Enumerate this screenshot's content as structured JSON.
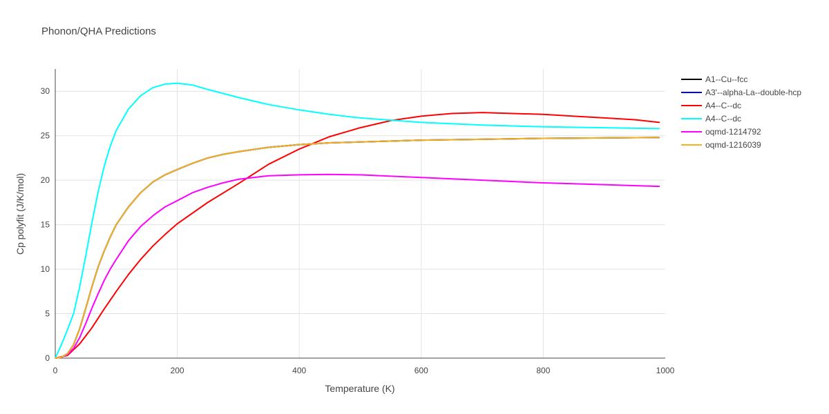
{
  "chart_data": {
    "type": "line",
    "title": "Phonon/QHA Predictions",
    "xlabel": "Temperature (K)",
    "ylabel": "Cp polyfit (J/K/mol)",
    "xlim": [
      0,
      1000
    ],
    "ylim": [
      0,
      32.5
    ],
    "x_ticks": [
      0,
      200,
      400,
      600,
      800,
      1000
    ],
    "y_ticks": [
      0,
      5,
      10,
      15,
      20,
      25,
      30
    ],
    "grid": true,
    "legend_position": "right",
    "series": [
      {
        "name": "A1--Cu--fcc",
        "color": "#000000",
        "x": [
          0,
          10,
          20,
          30,
          40,
          50,
          60,
          70,
          80,
          90,
          100,
          120,
          140,
          160,
          180,
          200,
          225,
          250,
          275,
          300,
          350,
          400,
          450,
          500,
          600,
          700,
          800,
          900,
          990
        ],
        "y": [
          0,
          0.1,
          0.5,
          1.5,
          3.3,
          5.6,
          8.0,
          10.2,
          12.0,
          13.6,
          15.0,
          17.0,
          18.6,
          19.8,
          20.6,
          21.2,
          21.9,
          22.5,
          22.9,
          23.2,
          23.7,
          24.0,
          24.2,
          24.3,
          24.5,
          24.6,
          24.7,
          24.75,
          24.8
        ]
      },
      {
        "name": "A3'--alpha-La--double-hcp",
        "color": "#0000ff",
        "x": [
          0,
          10,
          20,
          30,
          40,
          50,
          60,
          70,
          80,
          90,
          100,
          120,
          140,
          160,
          180,
          200,
          225,
          250,
          275,
          300,
          350,
          400,
          450,
          500,
          600,
          700,
          800,
          900,
          990
        ],
        "y": [
          0,
          0.1,
          0.5,
          1.5,
          3.3,
          5.6,
          8.0,
          10.2,
          12.0,
          13.6,
          15.0,
          17.0,
          18.6,
          19.8,
          20.6,
          21.2,
          21.9,
          22.5,
          22.9,
          23.2,
          23.7,
          24.0,
          24.2,
          24.3,
          24.5,
          24.6,
          24.7,
          24.75,
          24.8
        ]
      },
      {
        "name": "A4--C--dc",
        "color": "#ff0000",
        "x": [
          0,
          20,
          40,
          60,
          80,
          100,
          120,
          140,
          160,
          180,
          200,
          250,
          300,
          350,
          400,
          450,
          500,
          550,
          600,
          650,
          700,
          750,
          800,
          850,
          900,
          950,
          990
        ],
        "y": [
          0,
          0.3,
          1.6,
          3.4,
          5.5,
          7.5,
          9.4,
          11.1,
          12.6,
          13.9,
          15.1,
          17.5,
          19.6,
          21.8,
          23.5,
          24.9,
          25.9,
          26.7,
          27.2,
          27.5,
          27.6,
          27.5,
          27.4,
          27.2,
          27.0,
          26.8,
          26.5
        ]
      },
      {
        "name": "A4--C--dc",
        "color": "#00ffff",
        "x": [
          0,
          10,
          20,
          30,
          40,
          50,
          60,
          70,
          80,
          90,
          100,
          120,
          140,
          160,
          180,
          200,
          225,
          250,
          300,
          350,
          400,
          450,
          500,
          600,
          700,
          800,
          900,
          990
        ],
        "y": [
          0,
          1.5,
          3.2,
          5.0,
          8.0,
          11.5,
          15.2,
          18.6,
          21.5,
          23.8,
          25.6,
          28.0,
          29.5,
          30.4,
          30.8,
          30.9,
          30.7,
          30.2,
          29.3,
          28.5,
          27.9,
          27.4,
          27.0,
          26.5,
          26.2,
          26.0,
          25.9,
          25.8
        ]
      },
      {
        "name": "oqmd-1214792",
        "color": "#ff00ff",
        "x": [
          0,
          10,
          20,
          30,
          40,
          50,
          60,
          70,
          80,
          90,
          100,
          120,
          140,
          160,
          180,
          200,
          225,
          250,
          275,
          300,
          350,
          400,
          450,
          500,
          600,
          700,
          800,
          900,
          990
        ],
        "y": [
          0,
          0.1,
          0.4,
          1.1,
          2.3,
          3.9,
          5.6,
          7.2,
          8.7,
          10.0,
          11.1,
          13.2,
          14.8,
          16.0,
          17.0,
          17.7,
          18.6,
          19.2,
          19.7,
          20.1,
          20.5,
          20.6,
          20.65,
          20.6,
          20.3,
          20.0,
          19.7,
          19.5,
          19.3
        ]
      },
      {
        "name": "oqmd-1216039",
        "color": "#f5b31b",
        "x": [
          0,
          10,
          20,
          30,
          40,
          50,
          60,
          70,
          80,
          90,
          100,
          120,
          140,
          160,
          180,
          200,
          225,
          250,
          275,
          300,
          350,
          400,
          450,
          500,
          600,
          700,
          800,
          900,
          990
        ],
        "y": [
          0,
          0.1,
          0.5,
          1.5,
          3.3,
          5.6,
          8.0,
          10.2,
          12.0,
          13.6,
          15.0,
          17.0,
          18.6,
          19.8,
          20.6,
          21.2,
          21.9,
          22.5,
          22.9,
          23.2,
          23.7,
          24.0,
          24.2,
          24.3,
          24.5,
          24.6,
          24.7,
          24.75,
          24.8
        ]
      }
    ]
  }
}
